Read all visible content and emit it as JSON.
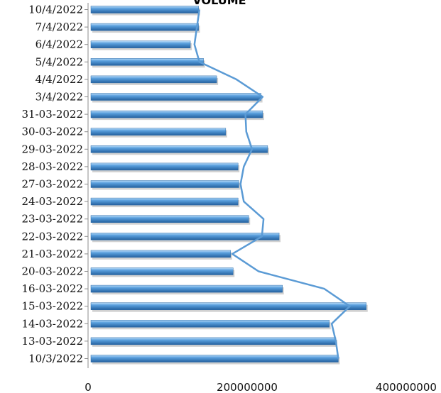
{
  "chart_data": {
    "type": "bar",
    "orientation": "horizontal",
    "title": "VOLUME",
    "categories": [
      "10/3/2022",
      "13-03-2022",
      "14-03-2022",
      "15-03-2022",
      "16-03-2022",
      "20-03-2022",
      "21-03-2022",
      "22-03-2022",
      "23-03-2022",
      "24-03-2022",
      "27-03-2022",
      "28-03-2022",
      "29-03-2022",
      "30-03-2022",
      "31-03-2022",
      "3/4/2022",
      "4/4/2022",
      "5/4/2022",
      "6/4/2022",
      "7/4/2022",
      "10/4/2022"
    ],
    "values": [
      301000000,
      298000000,
      290000000,
      335000000,
      233000000,
      173000000,
      170000000,
      229000000,
      192000000,
      179000000,
      180000000,
      179000000,
      215000000,
      164000000,
      209000000,
      207000000,
      153000000,
      137000000,
      121000000,
      131000000,
      131000000
    ],
    "line_values": [
      301000000,
      298000000,
      293000000,
      315000000,
      284000000,
      204000000,
      172000000,
      208000000,
      210000000,
      186000000,
      182000000,
      186000000,
      196000000,
      189000000,
      188000000,
      209000000,
      177000000,
      132000000,
      126000000,
      129000000,
      132000000
    ],
    "x_ticks": [
      "0",
      "200000000",
      "400000000"
    ],
    "xlim": [
      0,
      400000000
    ],
    "grid": false,
    "legend": "none",
    "colors": {
      "bar": "#4a90d4",
      "bar_light": "#9fcaf0",
      "bar_dark": "#24609e",
      "line": "#5b9bd5",
      "axis": "#8c8c8c"
    }
  }
}
